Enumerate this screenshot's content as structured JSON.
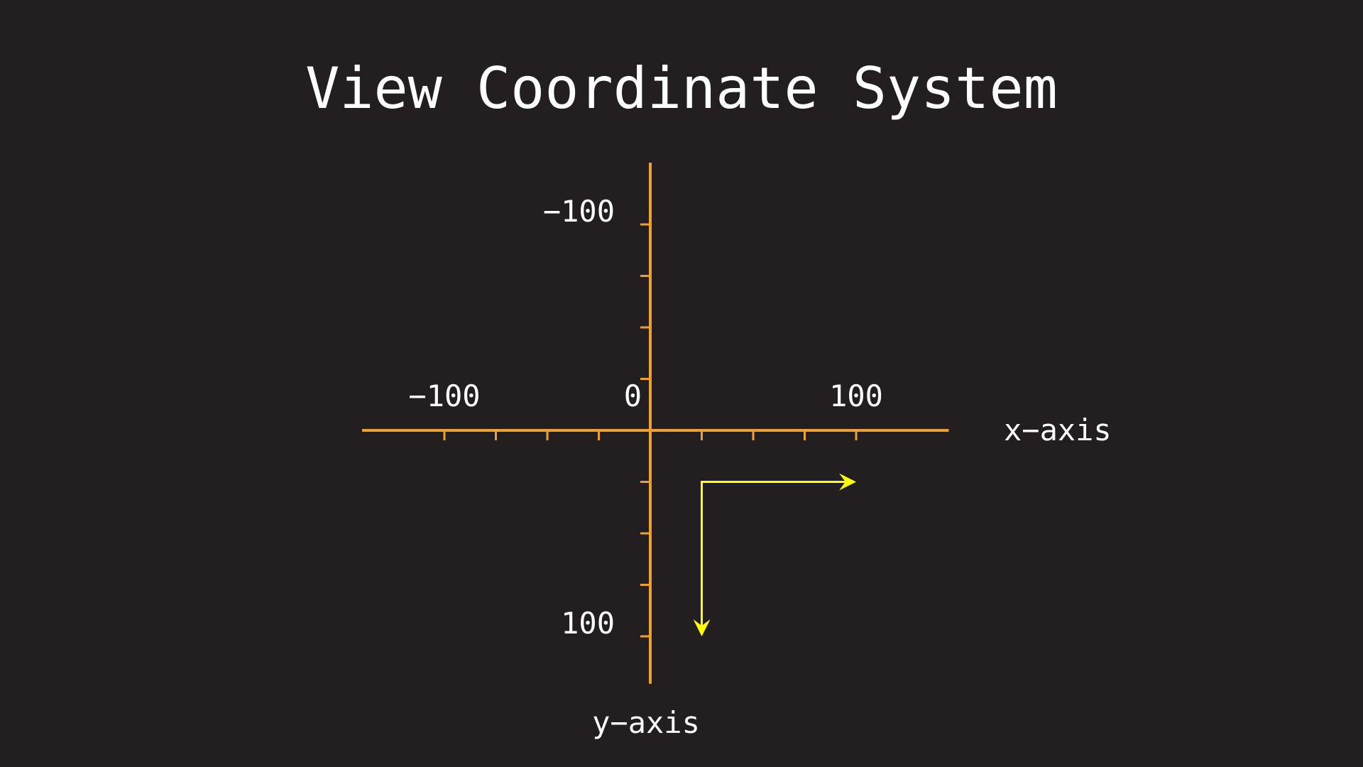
{
  "title": "View Coordinate System",
  "axes": {
    "x_label": "x−axis",
    "y_label": "y−axis",
    "x_ticks": [
      {
        "value": -100,
        "label": "−100"
      },
      {
        "value": 0,
        "label": "0"
      },
      {
        "value": 100,
        "label": "100"
      }
    ],
    "y_ticks": [
      {
        "value": -100,
        "label": "−100"
      },
      {
        "value": 100,
        "label": "100"
      }
    ],
    "minor_tick_step": 25,
    "x_range": [
      -140,
      145
    ],
    "y_range": [
      -130,
      123
    ]
  },
  "direction_arrows": {
    "corner": [
      25,
      25
    ],
    "x_arrow_to": 100,
    "y_arrow_to": 100
  },
  "colors": {
    "background": "#231f20",
    "axis": "#f0a030",
    "arrow": "#ffff00",
    "text": "#ffffff"
  }
}
